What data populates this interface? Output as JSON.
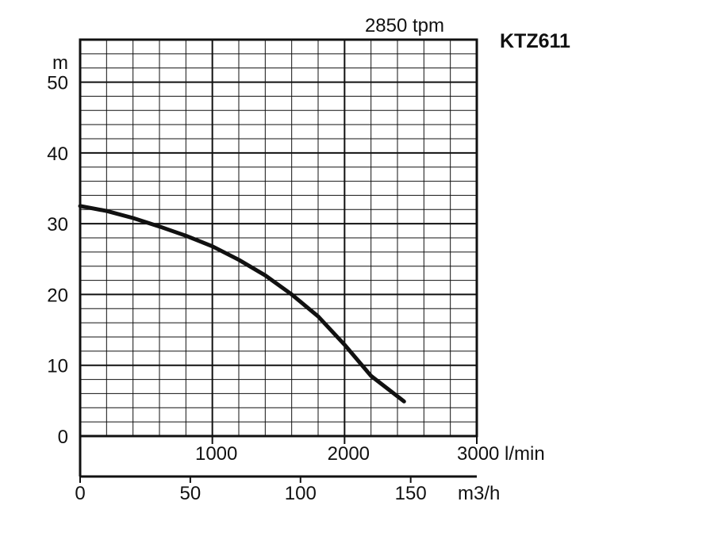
{
  "chart_data": {
    "type": "line",
    "title": "KTZ611",
    "subtitle": "2850 tpm",
    "ylabel": "m",
    "ylim": [
      0,
      56
    ],
    "yticks": [
      0,
      10,
      20,
      30,
      40,
      50
    ],
    "ytick_labels": [
      "0",
      "10",
      "20",
      "30",
      "40",
      "50"
    ],
    "xlim_lmin": [
      0,
      3000
    ],
    "xticks_lmin": [
      1000,
      2000,
      3000
    ],
    "xtick_labels_lmin": [
      "1000",
      "2000",
      "3000 l/min"
    ],
    "xticks_m3h": [
      0,
      50,
      100,
      150
    ],
    "xtick_labels_m3h": [
      "0",
      "50",
      "100",
      "150"
    ],
    "x_m3h_unit": "m3/h",
    "grid": true,
    "series": [
      {
        "color": "#111111",
        "x": [
          0,
          200,
          400,
          600,
          800,
          1000,
          1200,
          1400,
          1600,
          1800,
          2000,
          2200,
          2450
        ],
        "y": [
          32.5,
          31.8,
          30.8,
          29.6,
          28.3,
          26.8,
          24.9,
          22.7,
          20.0,
          16.9,
          12.9,
          8.5,
          4.9
        ]
      }
    ]
  }
}
